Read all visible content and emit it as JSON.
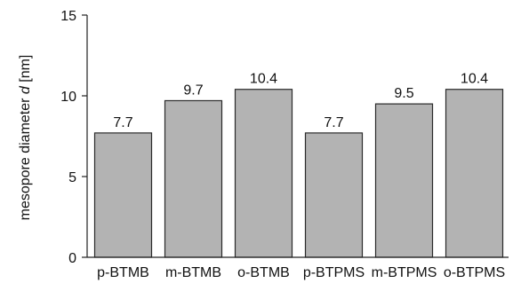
{
  "chart_data": {
    "type": "bar",
    "categories": [
      "p-BTMB",
      "m-BTMB",
      "o-BTMB",
      "p-BTPMS",
      "m-BTPMS",
      "o-BTPMS"
    ],
    "values": [
      7.7,
      9.7,
      10.4,
      7.7,
      9.5,
      10.4
    ],
    "data_labels": [
      "7.7",
      "9.7",
      "10.4",
      "7.7",
      "9.5",
      "10.4"
    ],
    "ylabel": {
      "prefix": "mesopore diameter ",
      "symbol": "d",
      "suffix": " [nm]"
    },
    "xlabel": "",
    "title": "",
    "ylim": [
      0,
      15
    ],
    "yticks": [
      0,
      5,
      10,
      15
    ],
    "ytick_labels": [
      "0",
      "5",
      "10",
      "15"
    ],
    "grid": false,
    "legend": "none",
    "colors": {
      "bar_fill": "#b3b3b3",
      "bar_stroke": "#2a2a2a",
      "axis": "#222222"
    }
  }
}
